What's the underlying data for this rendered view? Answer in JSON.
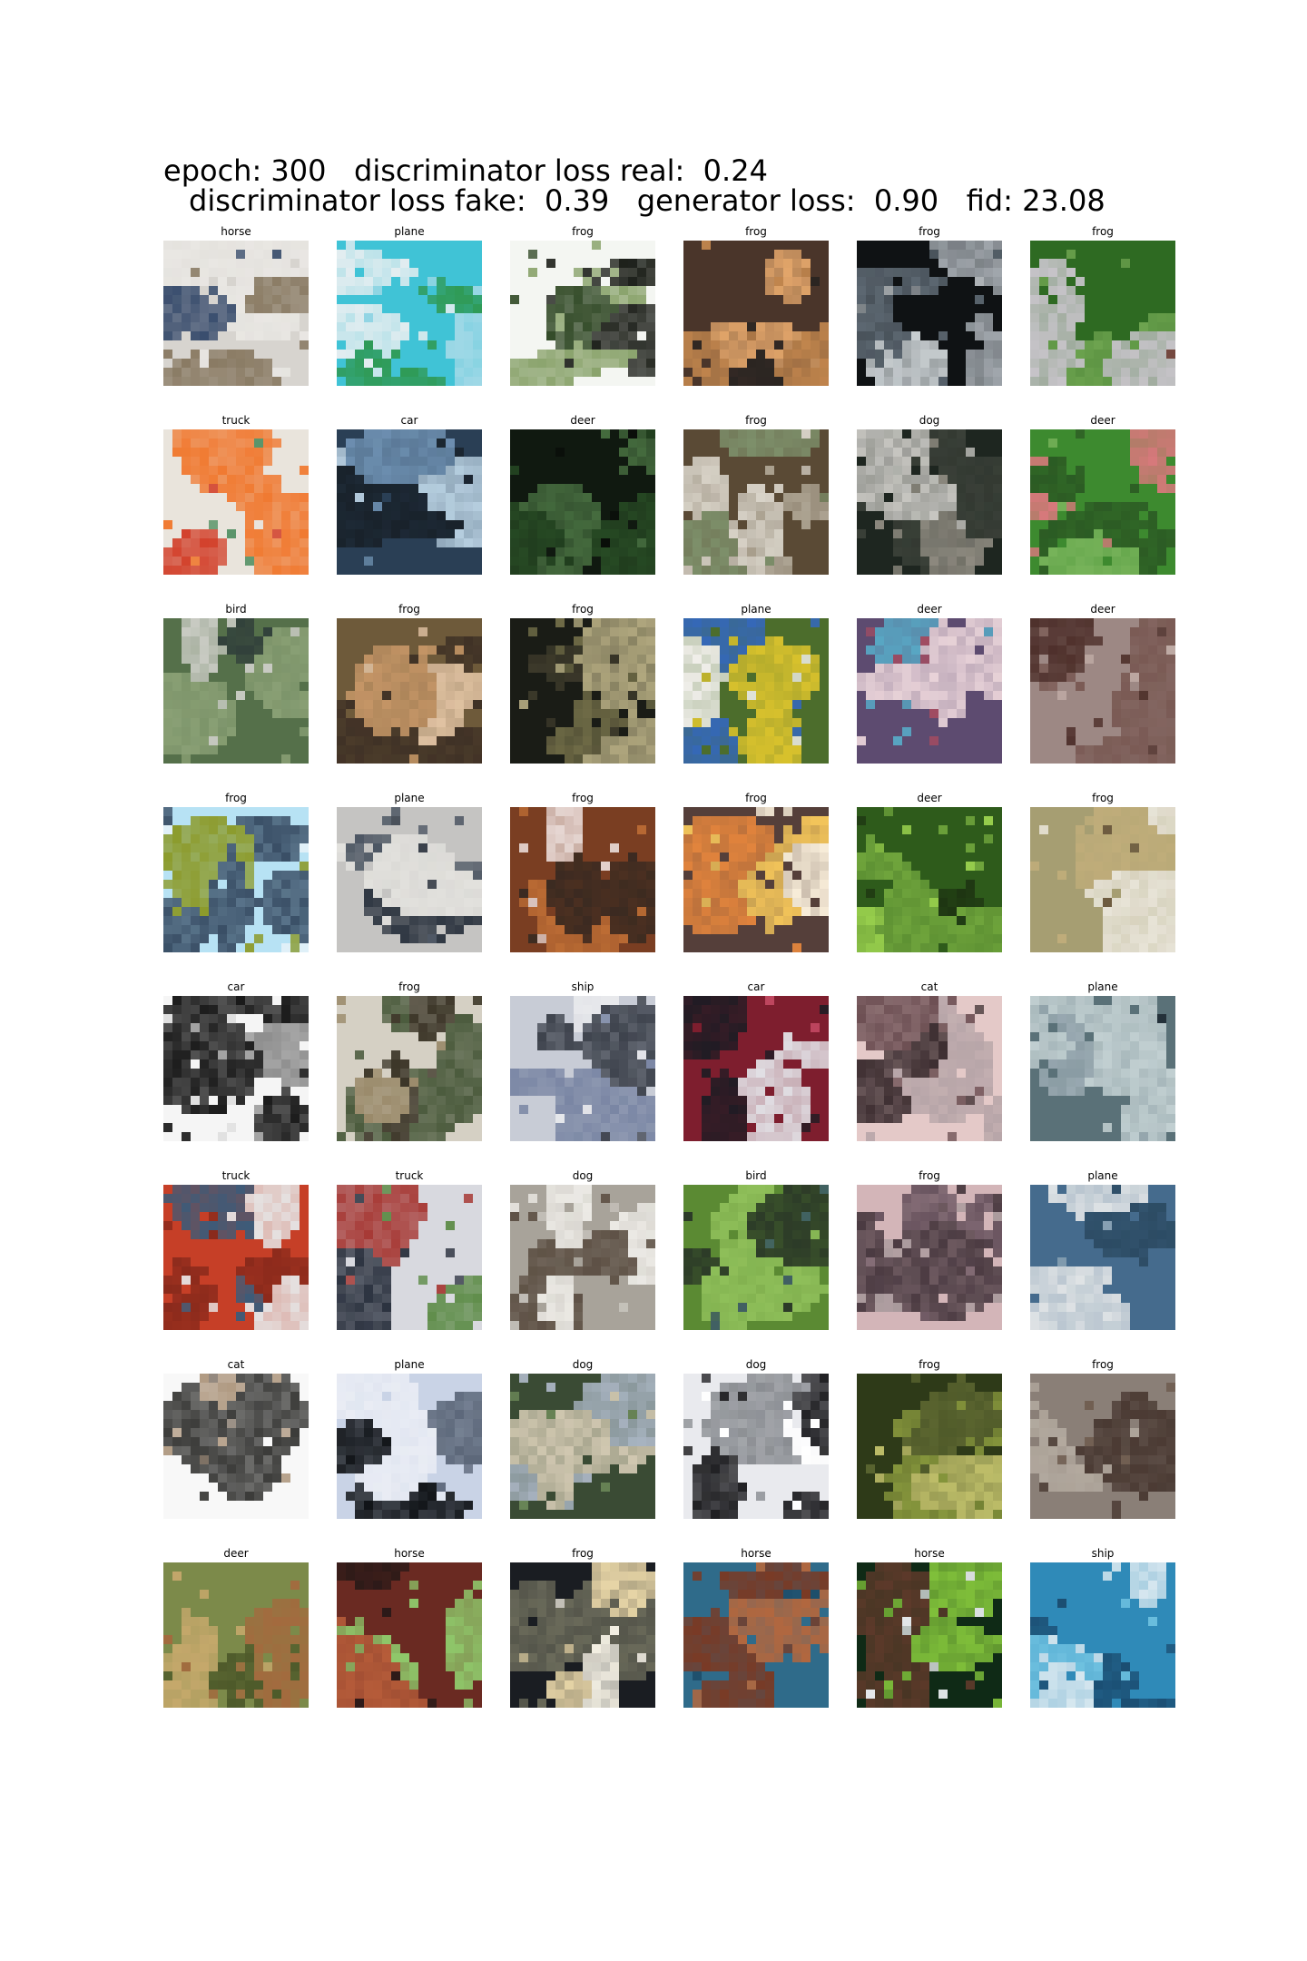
{
  "header": {
    "line1": "epoch: 300   discriminator loss real:  0.24",
    "line2": "discriminator loss fake:  0.39   generator loss:  0.90   fid: 23.08"
  },
  "grid": {
    "rows": [
      {
        "labels": [
          "horse",
          "plane",
          "frog",
          "frog",
          "frog",
          "frog"
        ],
        "palettes": [
          [
            "#d7d4cf",
            "#3a4e6e",
            "#8a7b64",
            "#e9e7e3"
          ],
          [
            "#40c3d6",
            "#9fd8e6",
            "#e4edf0",
            "#2f9a55"
          ],
          [
            "#f4f6f2",
            "#324a27",
            "#8aa36c",
            "#1b1e18"
          ],
          [
            "#4a352a",
            "#c0854d",
            "#e2a56a",
            "#2b2522"
          ],
          [
            "#0f1214",
            "#a0a6ac",
            "#5d6872",
            "#c9cfd2"
          ],
          [
            "#2e6a22",
            "#6da34f",
            "#c6c3c8",
            "#8b3f4a"
          ]
        ]
      },
      {
        "labels": [
          "truck",
          "car",
          "deer",
          "frog",
          "dog",
          "deer"
        ],
        "palettes": [
          [
            "#e9e4dc",
            "#d2402a",
            "#4b8c5e",
            "#f07a32"
          ],
          [
            "#2a3f55",
            "#6d8fb0",
            "#b7cfe0",
            "#19222b"
          ],
          [
            "#101910",
            "#274a24",
            "#456b3e",
            "#0a0e0a"
          ],
          [
            "#5a4a35",
            "#b0a796",
            "#7d8f6a",
            "#d8d3c8"
          ],
          [
            "#1e2620",
            "#c6c5c0",
            "#8e8a80",
            "#3a4038"
          ],
          [
            "#3d8a2f",
            "#d9787c",
            "#77b35a",
            "#2c5b24"
          ]
        ]
      },
      {
        "labels": [
          "bird",
          "frog",
          "frog",
          "plane",
          "deer",
          "deer"
        ],
        "palettes": [
          [
            "#55704a",
            "#c9cbc3",
            "#32413b",
            "#8aa075"
          ],
          [
            "#6e5a3a",
            "#c49566",
            "#e0c2a2",
            "#403226"
          ],
          [
            "#1a1c16",
            "#6e6a46",
            "#b0a77e",
            "#3d3a2b"
          ],
          [
            "#4c6d2c",
            "#d9c22d",
            "#3568b8",
            "#f2f0ec"
          ],
          [
            "#5d4b70",
            "#e8d2d8",
            "#a24c62",
            "#58a7c4"
          ],
          [
            "#9d8884",
            "#4e2f2a",
            "#bfaaa4",
            "#7a5a54"
          ]
        ]
      },
      {
        "labels": [
          "frog",
          "plane",
          "frog",
          "frog",
          "deer",
          "frog"
        ],
        "palettes": [
          [
            "#b7e2f4",
            "#8c9b2c",
            "#e6f2f8",
            "#3a4f66"
          ],
          [
            "#c5c4c2",
            "#4b5562",
            "#2f3742",
            "#e2e1dd"
          ],
          [
            "#7a3e22",
            "#bd6d35",
            "#e6d6d2",
            "#3c2b21"
          ],
          [
            "#553f3a",
            "#f2c45a",
            "#e1843d",
            "#f7ecd8"
          ],
          [
            "#2e5b1b",
            "#6fa43c",
            "#9ad14e",
            "#1e3512"
          ],
          [
            "#a69e72",
            "#6b5a3e",
            "#e8e4d8",
            "#c0ad7a"
          ]
        ]
      },
      {
        "labels": [
          "car",
          "frog",
          "ship",
          "car",
          "cat",
          "plane"
        ],
        "palettes": [
          [
            "#f5f5f5",
            "#1a1a1a",
            "#8d8d8d",
            "#dedede"
          ],
          [
            "#d5d0c4",
            "#4a5a3c",
            "#9a8a6a",
            "#3a3426"
          ],
          [
            "#c8ccd6",
            "#7a86a4",
            "#3e434d",
            "#e8e9ec"
          ],
          [
            "#7e1e2e",
            "#e1dfe4",
            "#c24962",
            "#201c24"
          ],
          [
            "#e4c9c8",
            "#6b4e52",
            "#b7a5a8",
            "#3e2f32"
          ],
          [
            "#5a7178",
            "#c1cfd1",
            "#23313a",
            "#9aaab2"
          ]
        ]
      },
      {
        "labels": [
          "truck",
          "truck",
          "dog",
          "bird",
          "frog",
          "plane"
        ],
        "palettes": [
          [
            "#c63f27",
            "#3e5b78",
            "#e5e3e3",
            "#8a2a1c"
          ],
          [
            "#d8d9df",
            "#2c3340",
            "#5f8d4a",
            "#a73a36"
          ],
          [
            "#a8a39a",
            "#eceae5",
            "#5d5044",
            "#c6c2bb"
          ],
          [
            "#5b8a33",
            "#3d5a6a",
            "#8fbf5a",
            "#2c3a28"
          ],
          [
            "#d3b5b8",
            "#6a5560",
            "#a99a9c",
            "#4b3b42"
          ],
          [
            "#456b8d",
            "#dfe3e5",
            "#8aa2b4",
            "#2c4b63"
          ]
        ]
      },
      {
        "labels": [
          "cat",
          "plane",
          "dog",
          "dog",
          "frog",
          "frog"
        ],
        "palettes": [
          [
            "#f8f8f8",
            "#3c3c3a",
            "#b09a82",
            "#7c6f62"
          ],
          [
            "#c9d3e6",
            "#111418",
            "#e9ecf4",
            "#5b6678"
          ],
          [
            "#3a4b34",
            "#a7b3c0",
            "#6e8b5a",
            "#d0c7b0"
          ],
          [
            "#e9eaee",
            "#1f1f22",
            "#8a8d92",
            "#ffffff"
          ],
          [
            "#2e3a18",
            "#8a9a3e",
            "#c0bf6a",
            "#5b6530"
          ],
          [
            "#8a7f77",
            "#4a3a33",
            "#b3aa9f",
            "#6f5c4f"
          ]
        ]
      },
      {
        "labels": [
          "deer",
          "horse",
          "frog",
          "horse",
          "horse",
          "ship"
        ],
        "palettes": [
          [
            "#7c8a4a",
            "#c5a86b",
            "#4e5a2a",
            "#a36a3e"
          ],
          [
            "#6a2a22",
            "#b75d3a",
            "#2b1a18",
            "#8fc76a"
          ],
          [
            "#1a1d22",
            "#e9d7a8",
            "#6a6a5a",
            "#f5f1e4"
          ],
          [
            "#2f6b8a",
            "#7a3a24",
            "#b3673e",
            "#1e4e6a"
          ],
          [
            "#0f2a16",
            "#e9ecef",
            "#5d3a2a",
            "#7fbf3a"
          ],
          [
            "#2f8ab8",
            "#6fc1e0",
            "#1b4e72",
            "#d8e8f0"
          ]
        ]
      }
    ]
  }
}
